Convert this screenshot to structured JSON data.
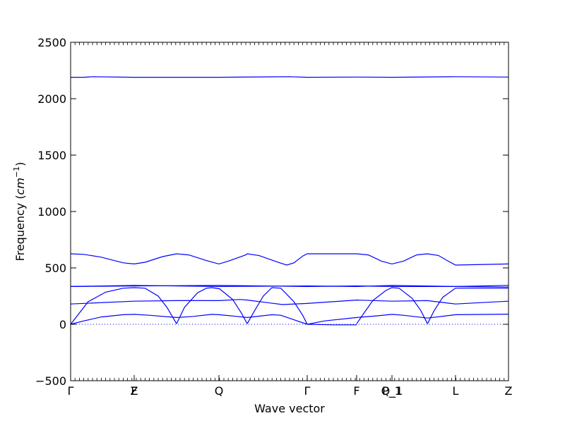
{
  "chart_data": {
    "type": "line",
    "xlabel": "Wave vector",
    "ylabel_prefix": "Frequency (",
    "ylabel_unit": "cm",
    "ylabel_exp": "−1",
    "ylabel_suffix": ")",
    "ylim": [
      -500,
      2500
    ],
    "yticks": [
      -500,
      0,
      500,
      1000,
      1500,
      2000,
      2500
    ],
    "xlim": [
      0,
      1
    ],
    "hsym_x": [
      0.0,
      0.1452,
      0.3387,
      0.5403,
      0.6532,
      0.7339,
      0.879,
      1.0
    ],
    "hsym_labels": [
      "Γ",
      "Z",
      "Q",
      "Γ",
      "F",
      "P_1",
      "L",
      "Z"
    ],
    "overlay_labels": [
      {
        "label": "F",
        "x": 0.1452
      },
      {
        "label": "Q_1",
        "x": 0.7339
      }
    ],
    "zero_line": 0,
    "series": [
      {
        "values": [
          [
            0,
            2190
          ],
          [
            0.03,
            2190
          ],
          [
            0.05,
            2195
          ],
          [
            0.1452,
            2190
          ],
          [
            0.3387,
            2190
          ],
          [
            0.5,
            2195
          ],
          [
            0.5403,
            2190
          ],
          [
            0.6532,
            2192
          ],
          [
            0.7339,
            2190
          ],
          [
            0.879,
            2195
          ],
          [
            1.0,
            2192
          ]
        ]
      },
      {
        "values": [
          [
            0,
            625
          ],
          [
            0.03,
            620
          ],
          [
            0.07,
            595
          ],
          [
            0.12,
            545
          ],
          [
            0.1452,
            535
          ],
          [
            0.17,
            550
          ],
          [
            0.21,
            600
          ],
          [
            0.2419,
            625
          ],
          [
            0.27,
            615
          ],
          [
            0.31,
            565
          ],
          [
            0.3387,
            535
          ],
          [
            0.36,
            560
          ],
          [
            0.4,
            615
          ],
          [
            0.4032,
            625
          ],
          [
            0.43,
            610
          ],
          [
            0.47,
            555
          ],
          [
            0.4935,
            525
          ],
          [
            0.51,
            545
          ],
          [
            0.53,
            605
          ],
          [
            0.5403,
            625
          ],
          [
            0.6532,
            625
          ],
          [
            0.68,
            615
          ],
          [
            0.71,
            560
          ],
          [
            0.7339,
            535
          ],
          [
            0.76,
            560
          ],
          [
            0.79,
            615
          ],
          [
            0.8145,
            625
          ],
          [
            0.84,
            610
          ],
          [
            0.86,
            565
          ],
          [
            0.879,
            525
          ],
          [
            1.0,
            535
          ]
        ]
      },
      {
        "values": [
          [
            0,
            335
          ],
          [
            0.1452,
            345
          ],
          [
            0.3387,
            335
          ],
          [
            0.5403,
            340
          ],
          [
            0.6532,
            335
          ],
          [
            0.7339,
            345
          ],
          [
            0.879,
            335
          ],
          [
            1.0,
            330
          ]
        ]
      },
      {
        "values": [
          [
            0,
            335
          ],
          [
            0.1452,
            340
          ],
          [
            0.3387,
            345
          ],
          [
            0.5403,
            335
          ],
          [
            0.6532,
            340
          ],
          [
            0.7339,
            335
          ],
          [
            0.879,
            335
          ],
          [
            1.0,
            345
          ]
        ]
      },
      {
        "values": [
          [
            0,
            180
          ],
          [
            0.1452,
            205
          ],
          [
            0.2419,
            210
          ],
          [
            0.3387,
            210
          ],
          [
            0.3871,
            220
          ],
          [
            0.4032,
            215
          ],
          [
            0.4839,
            175
          ],
          [
            0.5403,
            185
          ],
          [
            0.6532,
            215
          ],
          [
            0.7339,
            205
          ],
          [
            0.8145,
            210
          ],
          [
            0.879,
            180
          ],
          [
            1.0,
            205
          ]
        ]
      },
      {
        "values": [
          [
            0,
            0
          ],
          [
            0.04,
            200
          ],
          [
            0.08,
            285
          ],
          [
            0.12,
            320
          ],
          [
            0.1452,
            325
          ],
          [
            0.17,
            320
          ],
          [
            0.2,
            250
          ],
          [
            0.22,
            150
          ],
          [
            0.2419,
            5
          ]
        ]
      },
      {
        "values": [
          [
            0.2419,
            5
          ],
          [
            0.26,
            150
          ],
          [
            0.29,
            280
          ],
          [
            0.31,
            320
          ],
          [
            0.3226,
            325
          ],
          [
            0.34,
            315
          ],
          [
            0.37,
            220
          ],
          [
            0.39,
            100
          ],
          [
            0.4032,
            5
          ]
        ]
      },
      {
        "values": [
          [
            0.4032,
            5
          ],
          [
            0.42,
            120
          ],
          [
            0.44,
            250
          ],
          [
            0.4597,
            325
          ],
          [
            0.48,
            320
          ],
          [
            0.51,
            200
          ],
          [
            0.53,
            80
          ],
          [
            0.5403,
            0
          ]
        ]
      },
      {
        "values": [
          [
            0.6532,
            5
          ],
          [
            0.67,
            100
          ],
          [
            0.69,
            210
          ],
          [
            0.72,
            300
          ],
          [
            0.7339,
            325
          ],
          [
            0.75,
            320
          ],
          [
            0.78,
            230
          ],
          [
            0.8,
            120
          ],
          [
            0.815,
            5
          ]
        ]
      },
      {
        "values": [
          [
            0.815,
            5
          ],
          [
            0.83,
            120
          ],
          [
            0.85,
            240
          ],
          [
            0.879,
            320
          ],
          [
            1.0,
            320
          ]
        ]
      },
      {
        "values": [
          [
            0,
            0
          ],
          [
            0.03,
            30
          ],
          [
            0.07,
            65
          ],
          [
            0.12,
            85
          ],
          [
            0.1452,
            88
          ],
          [
            0.18,
            80
          ],
          [
            0.2419,
            60
          ],
          [
            0.28,
            70
          ],
          [
            0.3226,
            88
          ],
          [
            0.3387,
            85
          ],
          [
            0.38,
            70
          ],
          [
            0.4032,
            60
          ],
          [
            0.4597,
            85
          ],
          [
            0.48,
            80
          ],
          [
            0.51,
            40
          ],
          [
            0.5403,
            0
          ]
        ]
      },
      {
        "values": [
          [
            0.5403,
            0
          ],
          [
            0.58,
            30
          ],
          [
            0.6532,
            60
          ],
          [
            0.7,
            75
          ],
          [
            0.7339,
            88
          ],
          [
            0.76,
            80
          ],
          [
            0.815,
            55
          ],
          [
            0.879,
            85
          ],
          [
            1.0,
            90
          ]
        ]
      },
      {
        "values": [
          [
            0.5403,
            0
          ],
          [
            0.6,
            -5
          ],
          [
            0.6532,
            -5
          ]
        ]
      }
    ]
  }
}
